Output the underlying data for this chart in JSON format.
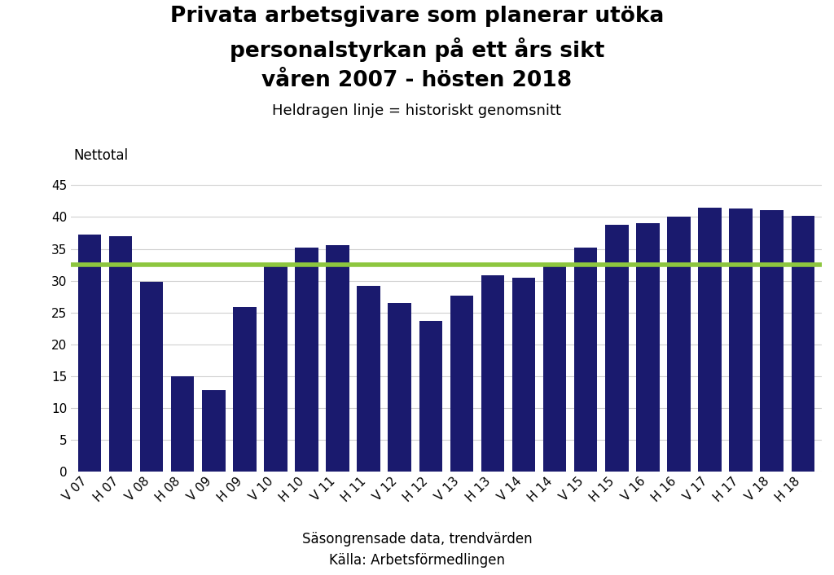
{
  "title_line1": "Privata arbetsgivare som planerar utöka",
  "title_line2": "personalstyrkan på ett års sikt",
  "title_line3": "våren 2007 - hösten 2018",
  "subtitle": "Heldragen linje = historiskt genomsnitt",
  "ylabel": "Nettotal",
  "xlabel1": "Säsongrensade data, trendvärden",
  "xlabel2": "Källa: Arbetsförmedlingen",
  "categories": [
    "V 07",
    "H 07",
    "V 08",
    "H 08",
    "V 09",
    "H 09",
    "V 10",
    "H 10",
    "V 11",
    "H 11",
    "V 12",
    "H 12",
    "V 13",
    "H 13",
    "V 14",
    "H 14",
    "V 15",
    "H 15",
    "V 16",
    "H 16",
    "V 17",
    "H 17",
    "V 18",
    "H 18"
  ],
  "values": [
    37.2,
    37.0,
    29.8,
    15.0,
    12.8,
    25.8,
    32.3,
    35.2,
    35.6,
    29.2,
    26.5,
    23.7,
    27.7,
    30.8,
    30.4,
    32.4,
    35.2,
    38.8,
    39.0,
    40.0,
    41.5,
    41.4,
    41.1,
    40.2
  ],
  "bar_color": "#1a1a6e",
  "avg_line_value": 32.5,
  "avg_line_color": "#8dc63f",
  "ylim": [
    0,
    47
  ],
  "yticks": [
    0,
    5,
    10,
    15,
    20,
    25,
    30,
    35,
    40,
    45
  ],
  "background_color": "#ffffff",
  "grid_color": "#d0d0d0",
  "title_fontsize": 19,
  "subtitle_fontsize": 13,
  "tick_fontsize": 11,
  "label_fontsize": 12,
  "ylabel_fontsize": 12
}
